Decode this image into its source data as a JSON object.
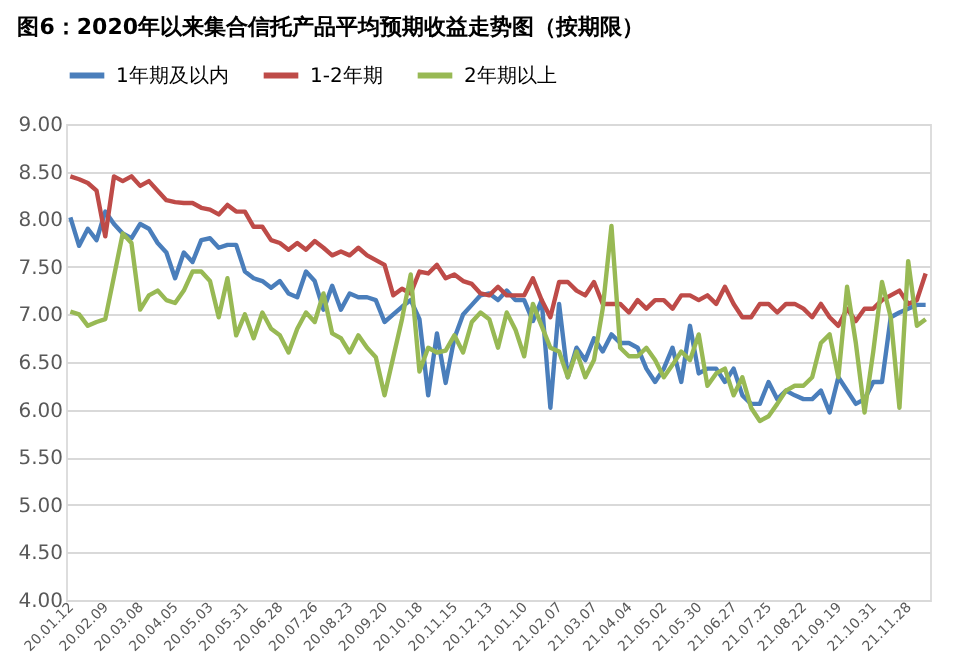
{
  "chart_data": {
    "type": "line",
    "title": "图6：2020年以来集合信托产品平均预期收益走势图（按期限）",
    "categories": [
      "20.01.12",
      null,
      null,
      null,
      "20.02.09",
      null,
      null,
      null,
      "20.03.08",
      null,
      null,
      null,
      "20.04.05",
      null,
      null,
      null,
      "20.05.03",
      null,
      null,
      null,
      "20.05.31",
      null,
      null,
      null,
      "20.06.28",
      null,
      null,
      null,
      "20.07.26",
      null,
      null,
      null,
      "20.08.23",
      null,
      null,
      null,
      "20.09.20",
      null,
      null,
      null,
      "20.10.18",
      null,
      null,
      null,
      "20.11.15",
      null,
      null,
      null,
      "20.12.13",
      null,
      null,
      null,
      "21.01.10",
      null,
      null,
      null,
      "21.02.07",
      null,
      null,
      null,
      "21.03.07",
      null,
      null,
      null,
      "21.04.04",
      null,
      null,
      null,
      "21.05.02",
      null,
      null,
      null,
      "21.05.30",
      null,
      null,
      null,
      "21.06.27",
      null,
      null,
      null,
      "21.07.25",
      null,
      null,
      null,
      "21.08.22",
      null,
      null,
      null,
      "21.09.19",
      null,
      null,
      null,
      "21.10.31",
      null,
      null,
      null,
      "21.11.28",
      null,
      null
    ],
    "series": [
      {
        "name": "1年期及以内",
        "color": "#4a7ebb",
        "values": [
          8.02,
          7.72,
          7.9,
          7.78,
          8.08,
          7.95,
          7.85,
          7.8,
          7.95,
          7.9,
          7.75,
          7.65,
          7.38,
          7.65,
          7.55,
          7.78,
          7.8,
          7.7,
          7.73,
          7.73,
          7.45,
          7.38,
          7.35,
          7.28,
          7.35,
          7.22,
          7.18,
          7.45,
          7.35,
          7.05,
          7.3,
          7.05,
          7.22,
          7.18,
          7.18,
          7.15,
          6.92,
          7.0,
          7.08,
          7.15,
          6.95,
          6.15,
          6.8,
          6.28,
          6.75,
          7.0,
          7.1,
          7.2,
          7.22,
          7.15,
          7.25,
          7.15,
          7.15,
          6.93,
          7.15,
          6.02,
          7.11,
          6.34,
          6.65,
          6.52,
          6.75,
          6.61,
          6.79,
          6.7,
          6.7,
          6.65,
          6.43,
          6.29,
          6.43,
          6.65,
          6.29,
          6.88,
          6.38,
          6.43,
          6.43,
          6.29,
          6.43,
          6.15,
          6.06,
          6.06,
          6.29,
          6.11,
          6.2,
          6.15,
          6.11,
          6.11,
          6.2,
          5.97,
          6.34,
          6.2,
          6.06,
          6.11,
          6.29,
          6.29,
          6.97,
          7.02,
          7.06,
          7.1,
          7.1
        ]
      },
      {
        "name": "1-2年期",
        "color": "#be4b48",
        "values": [
          8.45,
          8.42,
          8.38,
          8.3,
          7.82,
          8.45,
          8.4,
          8.45,
          8.35,
          8.4,
          8.3,
          8.2,
          8.18,
          8.17,
          8.17,
          8.12,
          8.1,
          8.05,
          8.15,
          8.08,
          8.08,
          7.92,
          7.92,
          7.78,
          7.75,
          7.68,
          7.75,
          7.68,
          7.77,
          7.7,
          7.62,
          7.66,
          7.62,
          7.7,
          7.62,
          7.57,
          7.52,
          7.2,
          7.27,
          7.22,
          7.45,
          7.43,
          7.52,
          7.38,
          7.42,
          7.35,
          7.32,
          7.22,
          7.2,
          7.29,
          7.2,
          7.2,
          7.2,
          7.38,
          7.15,
          6.97,
          7.34,
          7.34,
          7.25,
          7.2,
          7.34,
          7.11,
          7.11,
          7.11,
          7.02,
          7.15,
          7.06,
          7.15,
          7.15,
          7.06,
          7.2,
          7.2,
          7.15,
          7.2,
          7.11,
          7.29,
          7.11,
          6.97,
          6.97,
          7.11,
          7.11,
          7.02,
          7.11,
          7.11,
          7.06,
          6.97,
          7.11,
          6.97,
          6.88,
          7.06,
          6.93,
          7.06,
          7.06,
          7.15,
          7.2,
          7.25,
          7.11,
          7.15,
          7.43
        ]
      },
      {
        "name": "2年期以上",
        "color": "#98b954",
        "values": [
          7.03,
          7.0,
          6.88,
          6.92,
          6.95,
          7.4,
          7.85,
          7.75,
          7.05,
          7.2,
          7.25,
          7.15,
          7.12,
          7.25,
          7.45,
          7.45,
          7.35,
          6.97,
          7.38,
          6.78,
          7.0,
          6.75,
          7.02,
          6.85,
          6.78,
          6.6,
          6.85,
          7.02,
          6.92,
          7.22,
          6.8,
          6.75,
          6.6,
          6.78,
          6.65,
          6.55,
          6.15,
          6.55,
          6.95,
          7.42,
          6.4,
          6.65,
          6.6,
          6.62,
          6.78,
          6.6,
          6.92,
          7.02,
          6.95,
          6.65,
          7.02,
          6.84,
          6.56,
          7.11,
          6.88,
          6.65,
          6.61,
          6.34,
          6.61,
          6.34,
          6.52,
          7.06,
          7.93,
          6.65,
          6.56,
          6.56,
          6.65,
          6.52,
          6.34,
          6.47,
          6.61,
          6.52,
          6.79,
          6.25,
          6.38,
          6.43,
          6.15,
          6.34,
          6.02,
          5.88,
          5.93,
          6.06,
          6.2,
          6.25,
          6.25,
          6.34,
          6.7,
          6.79,
          6.34,
          7.29,
          6.7,
          5.97,
          6.61,
          7.34,
          6.97,
          6.02,
          7.56,
          6.88,
          6.95
        ]
      }
    ],
    "ylim": [
      4,
      9
    ],
    "yticks": [
      {
        "value": 4,
        "label": "4.00"
      },
      {
        "value": 4.5,
        "label": "4.50"
      },
      {
        "value": 5,
        "label": "5.00"
      },
      {
        "value": 5.5,
        "label": "5.50"
      },
      {
        "value": 6,
        "label": "6.00"
      },
      {
        "value": 6.5,
        "label": "6.50"
      },
      {
        "value": 7,
        "label": "7.00"
      },
      {
        "value": 7.5,
        "label": "7.50"
      },
      {
        "value": 8,
        "label": "8.00"
      },
      {
        "value": 8.5,
        "label": "8.50"
      },
      {
        "value": 9,
        "label": "9.00"
      }
    ],
    "grid": "y",
    "legend": "top",
    "line_style": "solid",
    "marker": "none"
  }
}
